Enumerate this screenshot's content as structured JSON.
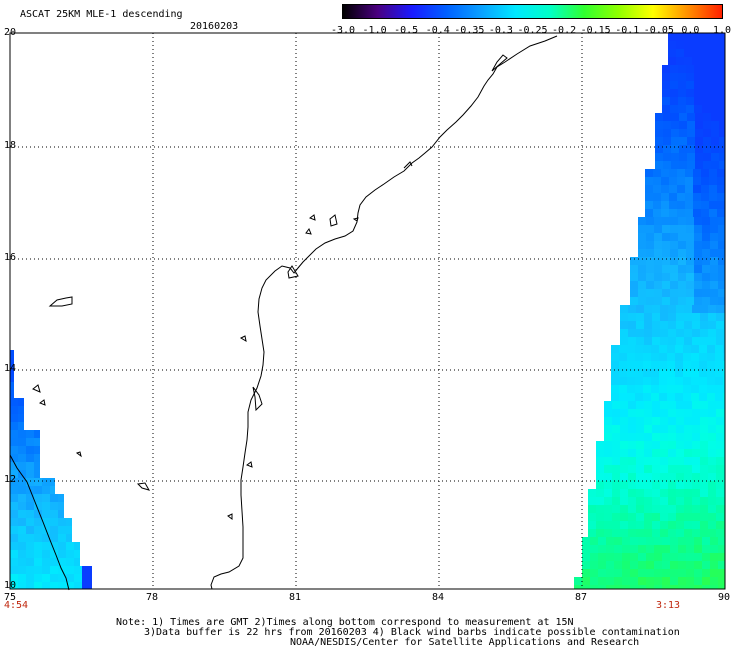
{
  "header": {
    "title": "ASCAT 25KM MLE-1 descending",
    "date": "20160203"
  },
  "colorbar": {
    "ticks": [
      "-3.0",
      "-1.0",
      "-0.5",
      "-0.4",
      "-0.35",
      "-0.3",
      "-0.25",
      "-0.2",
      "-0.15",
      "-0.1",
      "-0.05",
      "0.0",
      "1.0"
    ],
    "colors": [
      "#000000",
      "#4a0080",
      "#1a1aff",
      "#0060ff",
      "#0aa0ff",
      "#00e8ff",
      "#00ffc8",
      "#30ff30",
      "#90ff00",
      "#ffff00",
      "#ff9000",
      "#ff2000"
    ]
  },
  "map": {
    "lat_labels": [
      "20",
      "18",
      "16",
      "14",
      "12",
      "10"
    ],
    "lon_labels": [
      "75",
      "78",
      "81",
      "84",
      "87",
      "90"
    ],
    "lon_range": [
      75,
      90
    ],
    "lat_range": [
      10,
      20
    ],
    "time_left": "4:54",
    "time_right": "3:13",
    "ocean_color": "#ffffff",
    "coast_color": "#000000"
  },
  "notes": {
    "line1": "Note: 1) Times are GMT 2)Times along bottom correspond to measurement at 15N",
    "line2": "3)Data buffer is 22 hrs from 20160203 4) Black wind barbs indicate possible contamination",
    "line3": "NOAA/NESDIS/Center for Satellite Applications and Research"
  }
}
